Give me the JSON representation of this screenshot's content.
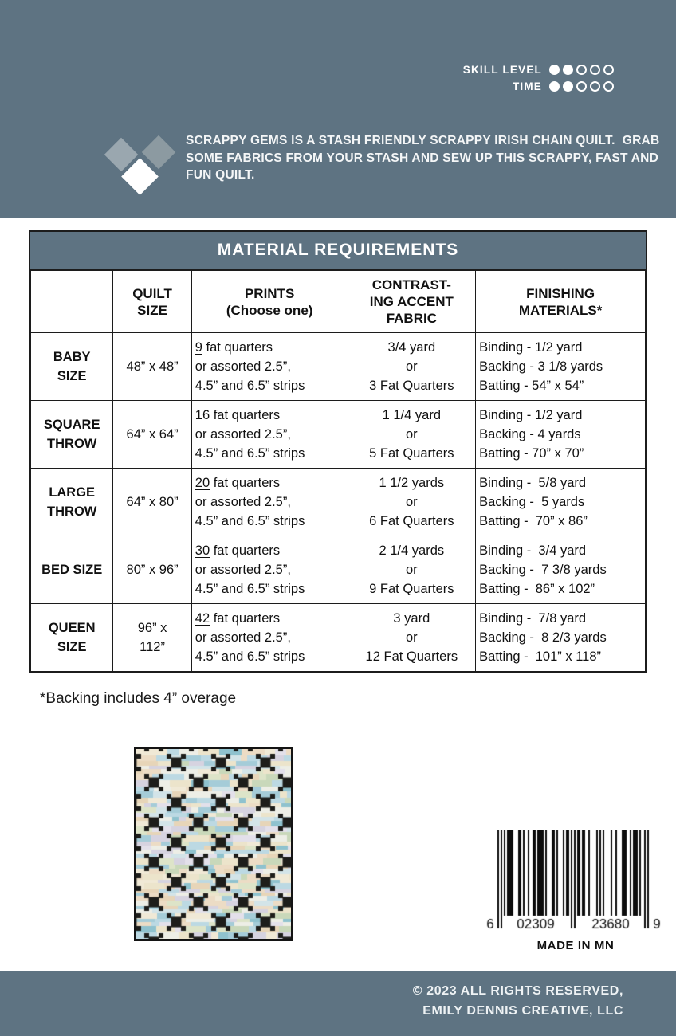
{
  "colors": {
    "slate": "#5e7382",
    "table_border": "#1c1c1c",
    "quilt_dark": "#1d1d1a"
  },
  "header": {
    "skill": {
      "label": "SKILL LEVEL",
      "filled": 2,
      "total": 5
    },
    "time": {
      "label": "TIME",
      "filled": 2,
      "total": 5
    },
    "logo": {
      "left_color": "#9aa7af",
      "right_color": "#8c9aa1",
      "bottom_color": "#ffffff"
    },
    "description_lines": [
      "SCRAPPY GEMS IS A STASH FRIENDLY SCRAPPY IRISH CHAIN QUILT.  GRAB",
      "SOME FABRICS FROM YOUR STASH AND SEW UP THIS SCRAPPY, FAST AND",
      "FUN QUILT."
    ]
  },
  "table": {
    "title": "MATERIAL REQUIREMENTS",
    "col_headers": [
      [
        ""
      ],
      [
        "QUILT",
        "SIZE"
      ],
      [
        "PRINTS",
        "(Choose one)"
      ],
      [
        "CONTRAST-",
        "ING ACCENT",
        "FABRIC"
      ],
      [
        "FINISHING",
        "MATERIALS*"
      ]
    ],
    "rows": [
      {
        "label": [
          "BABY",
          "SIZE"
        ],
        "size": [
          "48” x 48”"
        ],
        "prints_qty": "9",
        "prints_after": " fat quarters",
        "prints_lines": [
          "or assorted 2.5”,",
          "4.5” and 6.5” strips"
        ],
        "accent": [
          "3/4 yard",
          "or",
          "3 Fat Quarters"
        ],
        "finishing": [
          "Binding - 1/2 yard",
          "Backing - 3 1/8 yards",
          "Batting - 54” x 54”"
        ]
      },
      {
        "label": [
          "SQUARE",
          "THROW"
        ],
        "size": [
          "64” x 64”"
        ],
        "prints_qty": "16",
        "prints_after": " fat quarters",
        "prints_lines": [
          "or assorted 2.5”,",
          "4.5” and 6.5” strips"
        ],
        "accent": [
          "1 1/4 yard",
          "or",
          "5 Fat Quarters"
        ],
        "finishing": [
          "Binding - 1/2 yard",
          "Backing - 4 yards",
          "Batting - 70” x 70”"
        ]
      },
      {
        "label": [
          "LARGE",
          "THROW"
        ],
        "size": [
          "64” x 80”"
        ],
        "prints_qty": "20",
        "prints_after": " fat quarters",
        "prints_lines": [
          "or assorted 2.5”,",
          "4.5” and 6.5” strips"
        ],
        "accent": [
          "1 1/2 yards",
          "or",
          "6 Fat Quarters"
        ],
        "finishing": [
          "Binding -  5/8 yard",
          "Backing -  5 yards",
          "Batting -  70” x 86”"
        ]
      },
      {
        "label": [
          "BED SIZE"
        ],
        "size": [
          "80” x 96”"
        ],
        "prints_qty": "30",
        "prints_after": " fat quarters",
        "prints_lines": [
          "or assorted 2.5”,",
          "4.5” and 6.5” strips"
        ],
        "accent": [
          "2 1/4 yards",
          "or",
          "9 Fat Quarters"
        ],
        "finishing": [
          "Binding -  3/4 yard",
          "Backing -  7 3/8 yards",
          "Batting -  86” x 102”"
        ]
      },
      {
        "label": [
          "QUEEN",
          "SIZE"
        ],
        "size": [
          "96” x",
          "112”"
        ],
        "prints_qty": "42",
        "prints_after": " fat quarters",
        "prints_lines": [
          "or assorted 2.5”,",
          "4.5” and 6.5” strips"
        ],
        "accent": [
          "3 yard",
          "or",
          "12 Fat Quarters"
        ],
        "finishing": [
          "Binding -  7/8 yard",
          "Backing -  8 2/3 yards",
          "Batting -  101” x 118”"
        ]
      }
    ]
  },
  "note": "*Backing includes 4” overage",
  "quilt_preview": {
    "palette": [
      "#bcd9e3",
      "#a5ccd8",
      "#d3e4e8",
      "#c9d8ba",
      "#dde4c8",
      "#ece4cb",
      "#f0e9d6",
      "#e7d5b8",
      "#ecdcc5",
      "#d6d3e0",
      "#e3e0ea",
      "#8fc2ce",
      "#edeee6"
    ],
    "dark": "#1d1d1a"
  },
  "barcode": {
    "digits": "602309236809",
    "left_digit": "6",
    "group1": "02309",
    "group2": "23680",
    "right_digit": "9",
    "caption": "MADE IN MN"
  },
  "footer": {
    "line1": "© 2023 ALL RIGHTS RESERVED,",
    "line2": "EMILY DENNIS CREATIVE, LLC"
  }
}
